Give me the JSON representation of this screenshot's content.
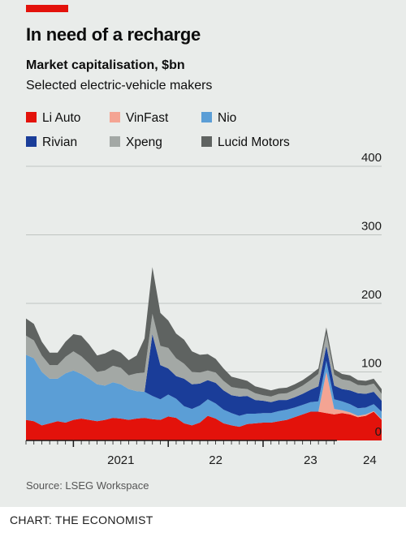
{
  "header": {
    "title": "In need of a recharge",
    "subtitle": "Market capitalisation, $bn",
    "subtitle2": "Selected electric-vehicle makers"
  },
  "legend": [
    {
      "name": "Li Auto",
      "color": "#e3120b"
    },
    {
      "name": "VinFast",
      "color": "#f4a493"
    },
    {
      "name": "Nio",
      "color": "#5b9ed6"
    },
    {
      "name": "Rivian",
      "color": "#1a3d99"
    },
    {
      "name": "Xpeng",
      "color": "#a3a8a5"
    },
    {
      "name": "Lucid Motors",
      "color": "#5f6361"
    }
  ],
  "footer": {
    "source": "Source: LSEG Workspace",
    "credit": "CHART: THE ECONOMIST"
  },
  "chart_data": {
    "type": "area",
    "stacked": true,
    "ylim": [
      0,
      400
    ],
    "yticks": [
      0,
      100,
      200,
      300,
      400
    ],
    "xlim": [
      "2020-07",
      "2024-04"
    ],
    "x_tick_labels": [
      {
        "label": "2021",
        "date": "2021-01"
      },
      {
        "label": "22",
        "date": "2022-01"
      },
      {
        "label": "23",
        "date": "2023-01"
      },
      {
        "label": "24",
        "date": "2024-01"
      }
    ],
    "grid": "horizontal",
    "x": [
      "2020-07",
      "2020-08",
      "2020-09",
      "2020-10",
      "2020-11",
      "2020-12",
      "2021-01",
      "2021-02",
      "2021-03",
      "2021-04",
      "2021-05",
      "2021-06",
      "2021-07",
      "2021-08",
      "2021-09",
      "2021-10",
      "2021-11",
      "2021-12",
      "2022-01",
      "2022-02",
      "2022-03",
      "2022-04",
      "2022-05",
      "2022-06",
      "2022-07",
      "2022-08",
      "2022-09",
      "2022-10",
      "2022-11",
      "2022-12",
      "2023-01",
      "2023-02",
      "2023-03",
      "2023-04",
      "2023-05",
      "2023-06",
      "2023-07",
      "2023-08",
      "2023-09",
      "2023-10",
      "2023-11",
      "2023-12",
      "2024-01",
      "2024-02",
      "2024-03",
      "2024-04"
    ],
    "series": [
      {
        "name": "Li Auto",
        "values": [
          30,
          28,
          22,
          25,
          28,
          26,
          30,
          32,
          30,
          28,
          30,
          33,
          32,
          30,
          32,
          33,
          31,
          30,
          35,
          33,
          25,
          22,
          26,
          36,
          32,
          25,
          22,
          20,
          24,
          25,
          26,
          26,
          28,
          30,
          34,
          38,
          42,
          42,
          40,
          38,
          40,
          38,
          34,
          36,
          42,
          30
        ]
      },
      {
        "name": "VinFast",
        "values": [
          0,
          0,
          0,
          0,
          0,
          0,
          0,
          0,
          0,
          0,
          0,
          0,
          0,
          0,
          0,
          0,
          0,
          0,
          0,
          0,
          0,
          0,
          0,
          0,
          0,
          0,
          0,
          0,
          0,
          0,
          0,
          0,
          0,
          0,
          0,
          0,
          0,
          0,
          60,
          8,
          4,
          3,
          2,
          2,
          1,
          1
        ]
      },
      {
        "name": "Nio",
        "values": [
          95,
          92,
          78,
          65,
          62,
          72,
          72,
          65,
          60,
          54,
          50,
          52,
          50,
          45,
          40,
          38,
          34,
          30,
          32,
          28,
          25,
          24,
          25,
          24,
          22,
          20,
          18,
          16,
          15,
          14,
          14,
          14,
          15,
          15,
          14,
          14,
          14,
          15,
          16,
          14,
          13,
          12,
          11,
          10,
          10,
          11
        ]
      },
      {
        "name": "Rivian",
        "values": [
          0,
          0,
          0,
          0,
          0,
          0,
          0,
          0,
          0,
          0,
          0,
          0,
          0,
          0,
          0,
          0,
          90,
          50,
          38,
          33,
          40,
          36,
          32,
          28,
          30,
          28,
          26,
          28,
          26,
          20,
          18,
          16,
          16,
          14,
          15,
          16,
          18,
          22,
          22,
          20,
          18,
          20,
          22,
          20,
          18,
          16
        ]
      },
      {
        "name": "Xpeng",
        "values": [
          28,
          26,
          24,
          20,
          20,
          24,
          28,
          26,
          22,
          18,
          22,
          24,
          24,
          20,
          26,
          28,
          30,
          28,
          30,
          26,
          22,
          18,
          16,
          14,
          15,
          14,
          12,
          12,
          10,
          10,
          8,
          8,
          9,
          10,
          11,
          12,
          14,
          18,
          18,
          16,
          14,
          14,
          12,
          12,
          12,
          10
        ]
      },
      {
        "name": "Lucid Motors",
        "values": [
          25,
          24,
          20,
          18,
          18,
          22,
          25,
          30,
          28,
          24,
          25,
          24,
          22,
          22,
          26,
          50,
          68,
          48,
          40,
          36,
          35,
          30,
          26,
          24,
          20,
          18,
          15,
          14,
          12,
          10,
          10,
          9,
          8,
          8,
          8,
          8,
          8,
          8,
          9,
          8,
          8,
          8,
          7,
          7,
          7,
          7
        ]
      }
    ]
  }
}
